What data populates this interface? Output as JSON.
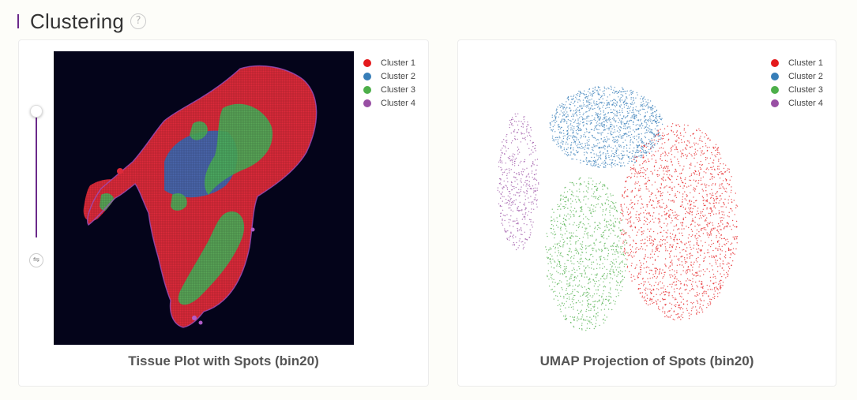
{
  "header": {
    "title": "Clustering",
    "help_glyph": "?"
  },
  "tissue_panel": {
    "title": "Tissue Plot with Spots (bin20)",
    "swap_glyph": "⇋",
    "slider_value": 0.0
  },
  "umap_panel": {
    "title": "UMAP Projection of Spots (bin20)"
  },
  "legend": [
    {
      "label": "Cluster 1",
      "color": "#e41a1c"
    },
    {
      "label": "Cluster 2",
      "color": "#377eb8"
    },
    {
      "label": "Cluster 3",
      "color": "#4daf4a"
    },
    {
      "label": "Cluster 4",
      "color": "#984ea3"
    }
  ],
  "colors": {
    "accent": "#6b2a8a",
    "tissue_background": "#04041a"
  }
}
